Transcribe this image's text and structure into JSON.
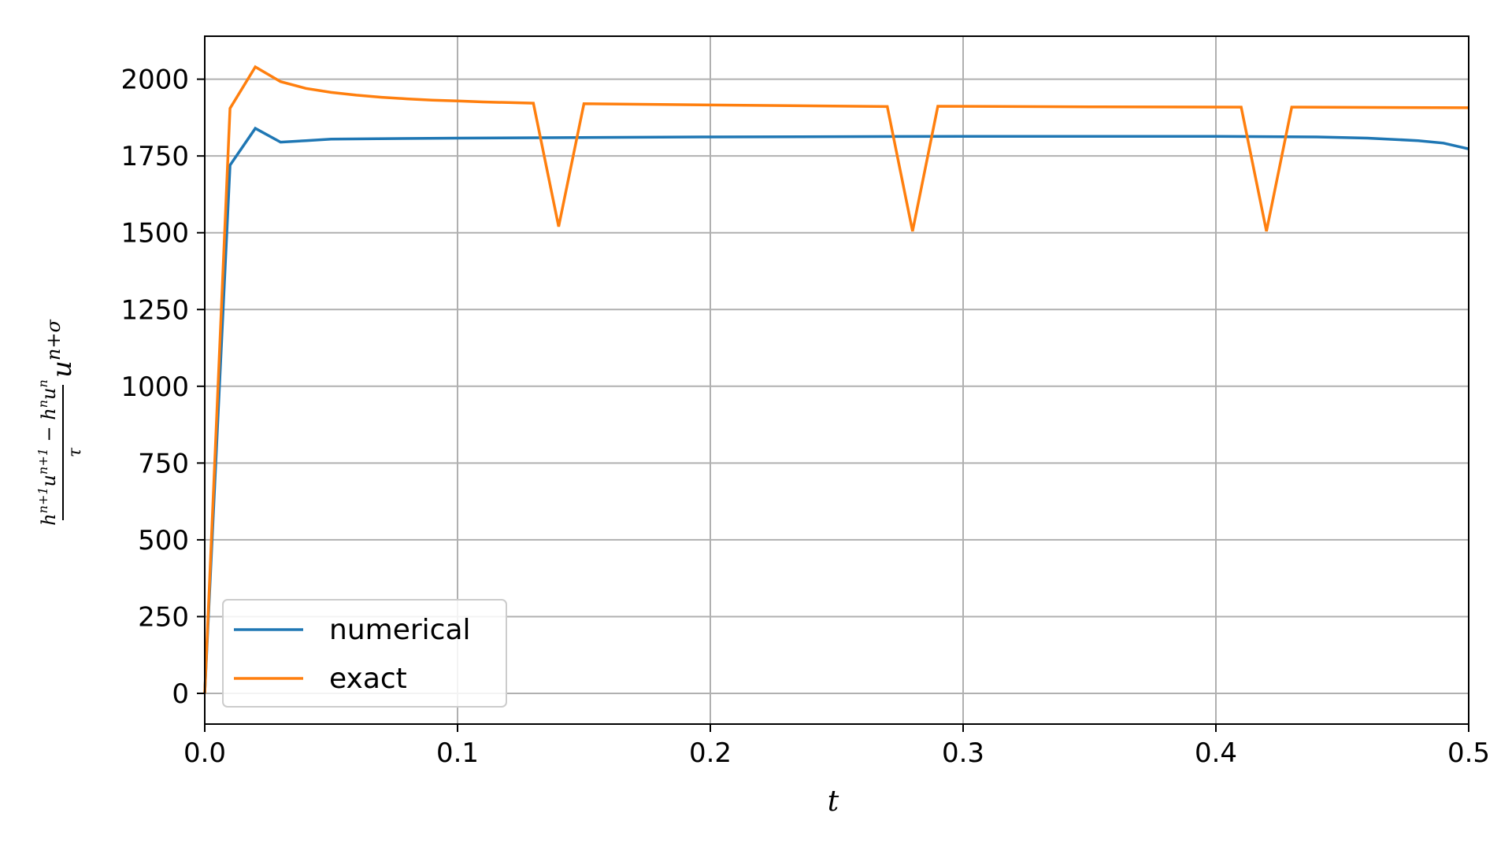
{
  "chart_data": {
    "type": "line",
    "xlabel": "t",
    "ylabel": {
      "numerator": "h^{n+1}u^{n+1} − h^n u^n",
      "denominator": "τ",
      "factor": "u^{n+σ}"
    },
    "xlim": [
      0.0,
      0.5
    ],
    "ylim": [
      -100,
      2140
    ],
    "x_ticks": [
      0.0,
      0.1,
      0.2,
      0.3,
      0.4,
      0.5
    ],
    "x_tick_labels": [
      "0.0",
      "0.1",
      "0.2",
      "0.3",
      "0.4",
      "0.5"
    ],
    "y_ticks": [
      0,
      250,
      500,
      750,
      1000,
      1250,
      1500,
      1750,
      2000
    ],
    "y_tick_labels": [
      "0",
      "250",
      "500",
      "750",
      "1000",
      "1250",
      "1500",
      "1750",
      "2000"
    ],
    "grid": true,
    "legend_position": "lower-left",
    "series": [
      {
        "name": "numerical",
        "color": "#1f77b4",
        "x": [
          0.0,
          0.01,
          0.02,
          0.03,
          0.04,
          0.05,
          0.1,
          0.2,
          0.3,
          0.4,
          0.44,
          0.46,
          0.48,
          0.49,
          0.5
        ],
        "y": [
          0,
          1720,
          1840,
          1795,
          1800,
          1805,
          1808,
          1812,
          1814,
          1814,
          1812,
          1808,
          1800,
          1792,
          1773
        ]
      },
      {
        "name": "exact",
        "color": "#ff7f0e",
        "x": [
          0.0,
          0.01,
          0.02,
          0.03,
          0.04,
          0.05,
          0.06,
          0.07,
          0.08,
          0.09,
          0.1,
          0.11,
          0.12,
          0.13,
          0.14,
          0.15,
          0.2,
          0.27,
          0.28,
          0.29,
          0.35,
          0.41,
          0.42,
          0.43,
          0.5
        ],
        "y": [
          0,
          1905,
          2040,
          1992,
          1970,
          1957,
          1948,
          1941,
          1936,
          1932,
          1929,
          1926,
          1924,
          1922,
          1520,
          1920,
          1916,
          1911,
          1505,
          1912,
          1910,
          1909,
          1505,
          1909,
          1907
        ]
      }
    ]
  }
}
